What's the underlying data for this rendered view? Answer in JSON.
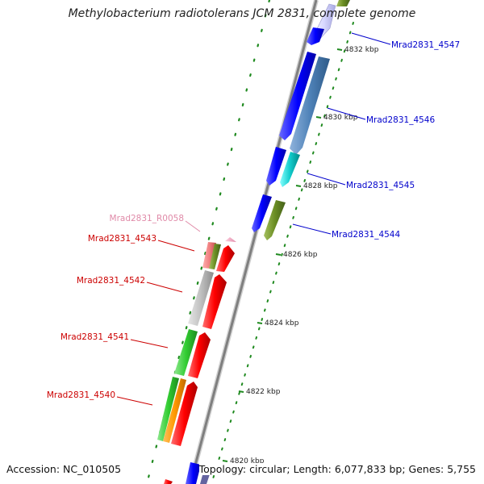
{
  "title": "Methylobacterium radiotolerans JCM 2831, complete genome",
  "footer": {
    "accession": "Accession: NC_010505",
    "summary": "Topology: circular; Length: 6,077,833 bp; Genes: 5,755"
  },
  "colors": {
    "backbone": "#8a8a8a",
    "tick": "#1f8a1f",
    "forward_label": "#0000cc",
    "reverse_label": "#cc0000",
    "rna_label": "#e08aa8"
  },
  "ticks": [
    {
      "label": "4832 kbp"
    },
    {
      "label": "4830 kbp"
    },
    {
      "label": "4828 kbp"
    },
    {
      "label": "4826 kbp"
    },
    {
      "label": "4824 kbp"
    },
    {
      "label": "4822 kbp"
    },
    {
      "label": "4820 kbp"
    }
  ],
  "labels": [
    {
      "text": "Mrad2831_4547",
      "strand": "forward"
    },
    {
      "text": "Mrad2831_4546",
      "strand": "forward"
    },
    {
      "text": "Mrad2831_4545",
      "strand": "forward"
    },
    {
      "text": "Mrad2831_4544",
      "strand": "forward"
    },
    {
      "text": "Mrad2831_R0058",
      "strand": "rna"
    },
    {
      "text": "Mrad2831_4543",
      "strand": "reverse"
    },
    {
      "text": "Mrad2831_4542",
      "strand": "reverse"
    },
    {
      "text": "Mrad2831_4541",
      "strand": "reverse"
    },
    {
      "text": "Mrad2831_4540",
      "strand": "reverse"
    }
  ]
}
